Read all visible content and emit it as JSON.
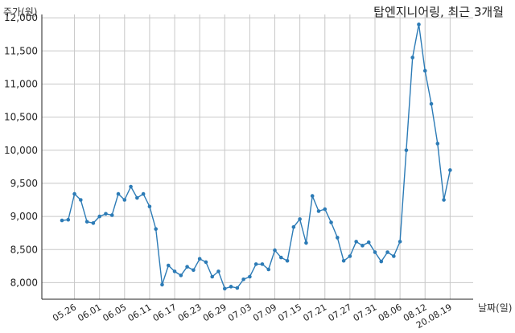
{
  "chart_data": {
    "type": "line",
    "title": "탑엔지니어링, 최근 3개월",
    "ylabel": "주가(원)",
    "xlabel": "날짜(일)",
    "ylim": [
      7750,
      12050
    ],
    "grid": true,
    "color": "#2c7bb6",
    "y_ticks": [
      8000,
      8500,
      9000,
      9500,
      10000,
      10500,
      11000,
      11500,
      12000
    ],
    "y_tick_labels": [
      "8,000",
      "8,500",
      "9,000",
      "9,500",
      "10,000",
      "10,500",
      "11,000",
      "11,500",
      "12,000"
    ],
    "x_ticks": [
      {
        "label": "05.26",
        "index": 2
      },
      {
        "label": "06.01",
        "index": 6
      },
      {
        "label": "06.05",
        "index": 10
      },
      {
        "label": "06.11",
        "index": 14
      },
      {
        "label": "06.17",
        "index": 18
      },
      {
        "label": "06.23",
        "index": 22
      },
      {
        "label": "06.29",
        "index": 26
      },
      {
        "label": "07.03",
        "index": 30
      },
      {
        "label": "07.09",
        "index": 34
      },
      {
        "label": "07.15",
        "index": 38
      },
      {
        "label": "07.21",
        "index": 42
      },
      {
        "label": "07.27",
        "index": 46
      },
      {
        "label": "07.31",
        "index": 50
      },
      {
        "label": "08.06",
        "index": 54
      },
      {
        "label": "08.12",
        "index": 58
      },
      {
        "label": "20.08.19",
        "index": 62
      }
    ],
    "series": [
      {
        "values": [
          8940,
          8950,
          9340,
          9250,
          8920,
          8900,
          9000,
          9040,
          9020,
          9340,
          9250,
          9450,
          9280,
          9340,
          9150,
          8810,
          7970,
          8260,
          8170,
          8110,
          8240,
          8190,
          8360,
          8310,
          8090,
          8170,
          7910,
          7940,
          7920,
          8050,
          8090,
          8280,
          8280,
          8200,
          8490,
          8380,
          8330,
          8840,
          8960,
          8600,
          9310,
          9080,
          9110,
          8910,
          8680,
          8330,
          8400,
          8620,
          8560,
          8610,
          8460,
          8320,
          8460,
          8400,
          8620,
          10000,
          11400,
          11900,
          11200,
          10700,
          10100,
          9250,
          9700
        ]
      }
    ]
  }
}
